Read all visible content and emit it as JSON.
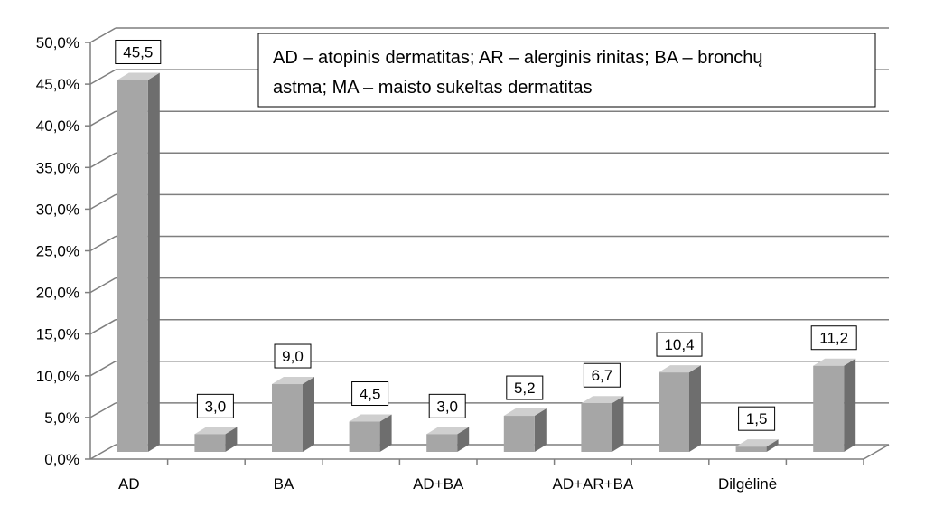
{
  "chart_data": {
    "type": "bar",
    "title": "",
    "xlabel": "",
    "ylabel": "",
    "ylim": [
      0,
      50
    ],
    "ytick_step": 5,
    "ytick_labels": [
      "0,0%",
      "5,0%",
      "10,0%",
      "15,0%",
      "20,0%",
      "25,0%",
      "30,0%",
      "35,0%",
      "40,0%",
      "45,0%",
      "50,0%"
    ],
    "categories": [
      "AD",
      "",
      "BA",
      "",
      "AD+BA",
      "",
      "AD+AR+BA",
      "",
      "Dilgėlinė",
      ""
    ],
    "values": [
      45.5,
      3.0,
      9.0,
      4.5,
      3.0,
      5.2,
      6.7,
      10.4,
      1.5,
      11.2
    ],
    "data_labels": [
      "45,5",
      "3,0",
      "9,0",
      "4,5",
      "3,0",
      "5,2",
      "6,7",
      "10,4",
      "1,5",
      "11,2"
    ],
    "grid": true,
    "style": "3d-column",
    "colors": {
      "bar_front": "#a6a6a6",
      "bar_side": "#6e6e6e",
      "bar_top": "#cfcfcf",
      "grid": "#7f7f7f",
      "axis": "#7f7f7f"
    },
    "annotation": {
      "lines": [
        "AD – atopinis dermatitas; AR – alerginis rinitas; BA – bronchų",
        "astma; MA – maisto sukeltas dermatitas"
      ]
    }
  }
}
